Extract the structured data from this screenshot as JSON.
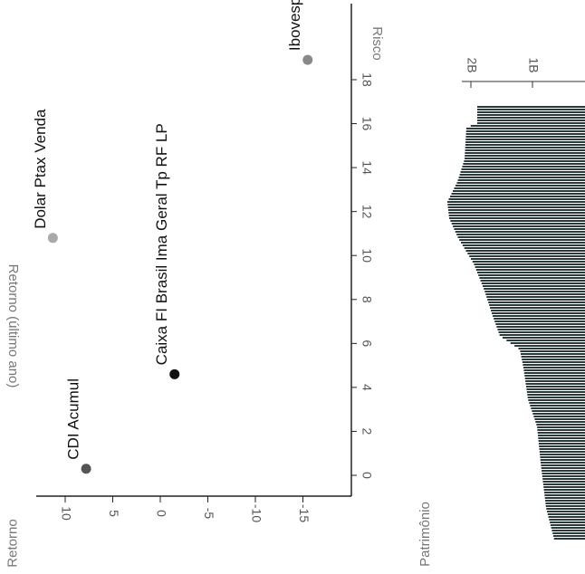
{
  "chart_data": [
    {
      "type": "scatter",
      "title": "Retorno (último ano)",
      "xlabel": "Risco",
      "ylabel": "Retorno",
      "xlim": [
        -1,
        19.5
      ],
      "ylim": [
        -17.5,
        12.5
      ],
      "xticks": [
        0,
        2,
        4,
        6,
        8,
        10,
        12,
        14,
        16,
        18
      ],
      "yticks": [
        10,
        5,
        0,
        -5,
        -10,
        -15
      ],
      "grid": false,
      "rotation": "rotated 90° clockwise",
      "points": [
        {
          "label": "CDI Acumul",
          "x": 0.3,
          "y": 7.8,
          "color": "#555555"
        },
        {
          "label": "Caixa FI Brasil Ima Geral Tp RF LP",
          "x": 4.6,
          "y": -1.5,
          "color": "#111111"
        },
        {
          "label": "Dolar Ptax Venda",
          "x": 10.8,
          "y": 11.3,
          "color": "#aaaaaa"
        },
        {
          "label": "Ibovespa",
          "x": 18.9,
          "y": -15.5,
          "color": "#888888"
        }
      ]
    },
    {
      "type": "bar",
      "ylabel": "Patrimônio",
      "yticks": [
        "2B",
        "1B"
      ],
      "rotation": "rotated 90° clockwise",
      "color": "#2a3a3a"
    }
  ]
}
